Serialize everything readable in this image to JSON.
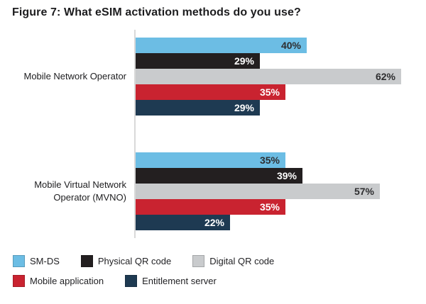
{
  "title": "Figure 7: What eSIM activation methods do you use?",
  "chart_data": {
    "type": "bar",
    "orientation": "horizontal",
    "title": "Figure 7: What eSIM activation methods do you use?",
    "categories": [
      "Mobile Network Operator",
      "Mobile Virtual Network Operator (MVNO)"
    ],
    "series": [
      {
        "name": "SM-DS",
        "color": "#6CBDE4",
        "values": [
          40,
          35
        ]
      },
      {
        "name": "Physical QR code",
        "color": "#231F20",
        "values": [
          29,
          39
        ]
      },
      {
        "name": "Digital QR code",
        "color": "#C9CBCD",
        "values": [
          62,
          57
        ]
      },
      {
        "name": "Mobile application",
        "color": "#C92330",
        "values": [
          35,
          35
        ]
      },
      {
        "name": "Entitlement server",
        "color": "#1E3A52",
        "values": [
          29,
          22
        ]
      }
    ],
    "value_suffix": "%",
    "value_labels": "inside-end",
    "xlim": [
      0,
      66
    ],
    "grid": "off",
    "legend_position": "bottom-left"
  }
}
